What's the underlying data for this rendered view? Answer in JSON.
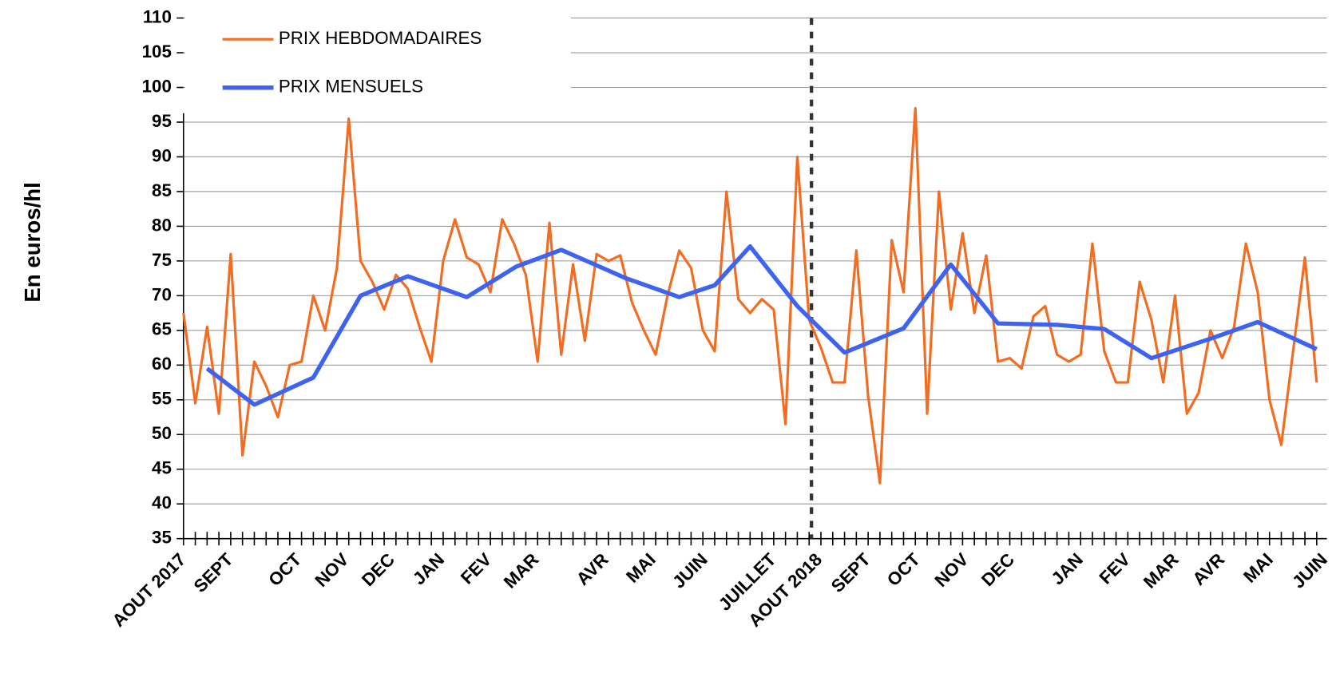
{
  "chart_data": {
    "type": "line",
    "y_axis_label": "En euros/hl",
    "xlim": [
      0,
      96
    ],
    "xticks": [
      {
        "value": 0,
        "label": "AOUT 2017"
      },
      {
        "value": 4,
        "label": "SEPT"
      },
      {
        "value": 9.8,
        "label": "OCT"
      },
      {
        "value": 13.8,
        "label": "NOV"
      },
      {
        "value": 17.7,
        "label": "DEC"
      },
      {
        "value": 21.9,
        "label": "JAN"
      },
      {
        "value": 25.9,
        "label": "FEV"
      },
      {
        "value": 29.9,
        "label": "MAR"
      },
      {
        "value": 35.8,
        "label": "AVR"
      },
      {
        "value": 39.8,
        "label": "MAI"
      },
      {
        "value": 44.2,
        "label": "JUIN"
      },
      {
        "value": 50,
        "label": "JUILLET"
      },
      {
        "value": 53.9,
        "label": "AOUT 2018"
      },
      {
        "value": 58,
        "label": "SEPT"
      },
      {
        "value": 62.2,
        "label": "OCT"
      },
      {
        "value": 66.3,
        "label": "NOV"
      },
      {
        "value": 70.2,
        "label": "DEC"
      },
      {
        "value": 76,
        "label": "JAN"
      },
      {
        "value": 80,
        "label": "FEV"
      },
      {
        "value": 84.1,
        "label": "MAR"
      },
      {
        "value": 88,
        "label": "AVR"
      },
      {
        "value": 92.1,
        "label": "MAI"
      },
      {
        "value": 96.7,
        "label": "JUIN"
      }
    ],
    "ylim": [
      35,
      110
    ],
    "yticks": [
      35,
      40,
      45,
      50,
      55,
      60,
      65,
      70,
      75,
      80,
      85,
      90,
      95,
      100,
      105,
      110
    ],
    "grid": true,
    "reference_line_x": 53.2,
    "series": [
      {
        "name": "PRIX HEBDOMADAIRES",
        "color": "#f26d21",
        "values": [
          67.5,
          54.5,
          65.5,
          53,
          76,
          47,
          60.5,
          57,
          52.5,
          60,
          60.5,
          70,
          65,
          74,
          95.5,
          75,
          72,
          68,
          73,
          71,
          65.5,
          60.5,
          75,
          81,
          75.5,
          74.5,
          70.5,
          81,
          77.5,
          73,
          60.5,
          80.5,
          61.5,
          74.5,
          63.5,
          76,
          75,
          75.8,
          69,
          65,
          61.5,
          70,
          76.5,
          74,
          65,
          62,
          85,
          69.5,
          67.5,
          69.5,
          68,
          51.5,
          90,
          66.5,
          62.5,
          57.5,
          57.5,
          76.5,
          55.5,
          43,
          78,
          70.5,
          97,
          53,
          85,
          68,
          79,
          67.5,
          75.8,
          60.5,
          61,
          59.5,
          67,
          68.5,
          61.5,
          60.5,
          61.5,
          77.5,
          62,
          57.5,
          57.5,
          72,
          66.5,
          57.5,
          70,
          53,
          56,
          65,
          61,
          65.5,
          77.5,
          70.5,
          55,
          48.5,
          62,
          75.5,
          57.5
        ]
      },
      {
        "name": "PRIX MENSUELS",
        "color": "#3d63f0",
        "x": [
          2,
          6,
          11,
          15,
          19,
          24,
          28.2,
          32,
          37.5,
          42,
          45,
          48,
          52,
          56,
          61,
          65,
          69,
          74,
          78,
          82,
          87,
          91,
          96
        ],
        "values": [
          59.5,
          54.3,
          58.2,
          70,
          72.8,
          69.8,
          74.2,
          76.6,
          72.5,
          69.8,
          71.5,
          77.1,
          68.5,
          61.8,
          65.3,
          74.5,
          66,
          65.8,
          65.2,
          61,
          63.8,
          66.2,
          62.3
        ]
      }
    ]
  }
}
